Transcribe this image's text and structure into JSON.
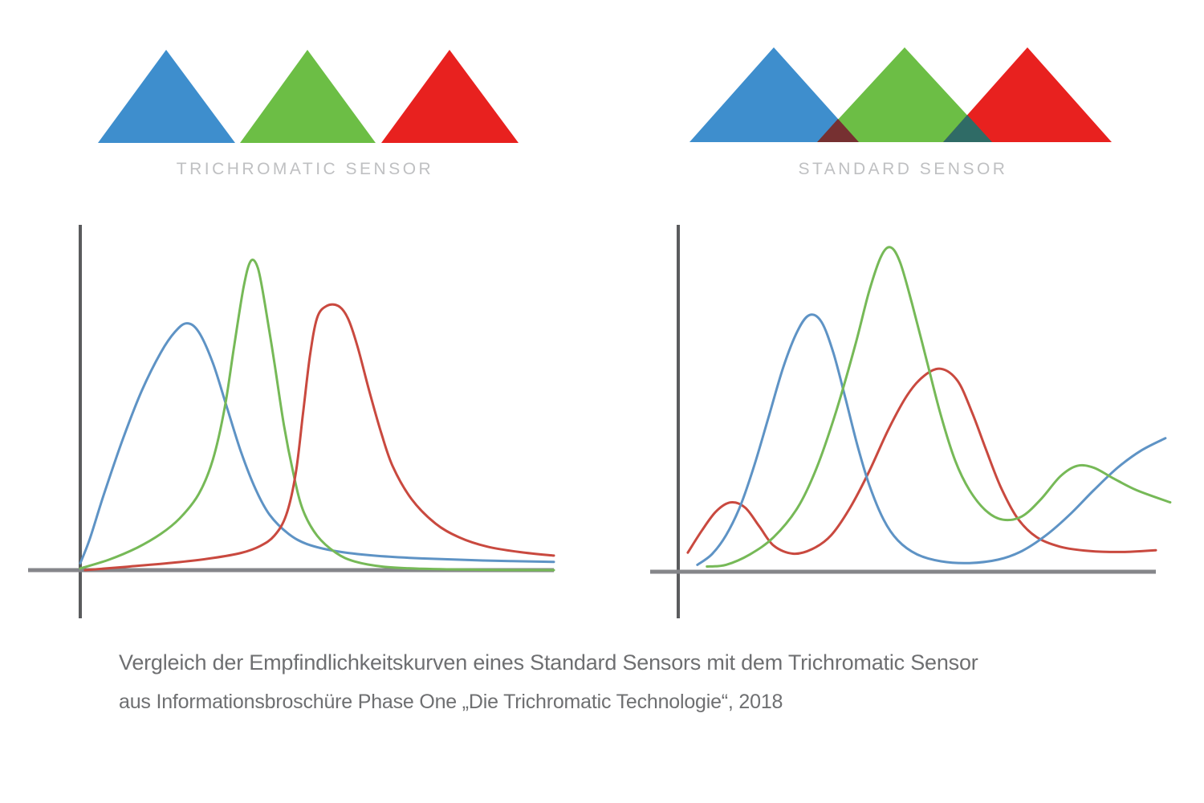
{
  "figure": {
    "background": "#ffffff"
  },
  "colors": {
    "triangle_blue": "#3e8ecd",
    "triangle_green": "#6cbe45",
    "triangle_red": "#e8211f",
    "overlap_blue_green": "#763031",
    "overlap_green_red": "#2f6b66",
    "curve_blue": "#5e93c5",
    "curve_green": "#76b957",
    "curve_red": "#c9493f",
    "axis_horizontal": "#85868a",
    "axis_vertical": "#5b5c5e",
    "sensor_label_gray": "#bfc0c2",
    "caption_gray": "#6e6f71"
  },
  "trichromatic": {
    "label": "TRICHROMATIC SENSOR"
  },
  "standard": {
    "label": "STANDARD SENSOR"
  },
  "caption": {
    "line1": "Vergleich der Empfindlichkeitskurven eines Standard Sensors mit dem Trichromatic Sensor",
    "line2": "aus Informationsbroschüre Phase One „Die Trichromatic Technologie“, 2018"
  },
  "chart_data": [
    {
      "type": "line",
      "title": "TRICHROMATIC SENSOR",
      "xlabel": "",
      "ylabel": "",
      "x_range": [
        0,
        1
      ],
      "y_range": [
        0,
        1
      ],
      "grid": false,
      "legend": null,
      "description": "Spectral sensitivity curves of the Trichromatic sensor: three well-separated narrow peaks (blue, green, red) with little overlap.",
      "series": [
        {
          "name": "blue",
          "color": "#5e93c5",
          "points": [
            [
              0,
              0.02
            ],
            [
              0.02,
              0.09
            ],
            [
              0.05,
              0.22
            ],
            [
              0.09,
              0.38
            ],
            [
              0.13,
              0.52
            ],
            [
              0.17,
              0.63
            ],
            [
              0.2,
              0.69
            ],
            [
              0.225,
              0.715
            ],
            [
              0.25,
              0.69
            ],
            [
              0.28,
              0.6
            ],
            [
              0.31,
              0.47
            ],
            [
              0.34,
              0.34
            ],
            [
              0.37,
              0.235
            ],
            [
              0.4,
              0.16
            ],
            [
              0.44,
              0.105
            ],
            [
              0.48,
              0.075
            ],
            [
              0.54,
              0.055
            ],
            [
              0.62,
              0.042
            ],
            [
              0.72,
              0.034
            ],
            [
              0.85,
              0.028
            ],
            [
              1.0,
              0.024
            ]
          ]
        },
        {
          "name": "green",
          "color": "#76b957",
          "points": [
            [
              0,
              0.005
            ],
            [
              0.06,
              0.03
            ],
            [
              0.12,
              0.065
            ],
            [
              0.17,
              0.105
            ],
            [
              0.21,
              0.15
            ],
            [
              0.25,
              0.22
            ],
            [
              0.28,
              0.32
            ],
            [
              0.305,
              0.47
            ],
            [
              0.325,
              0.65
            ],
            [
              0.345,
              0.82
            ],
            [
              0.36,
              0.895
            ],
            [
              0.375,
              0.875
            ],
            [
              0.39,
              0.77
            ],
            [
              0.41,
              0.6
            ],
            [
              0.43,
              0.42
            ],
            [
              0.45,
              0.28
            ],
            [
              0.47,
              0.175
            ],
            [
              0.5,
              0.1
            ],
            [
              0.54,
              0.05
            ],
            [
              0.58,
              0.025
            ],
            [
              0.64,
              0.01
            ],
            [
              0.72,
              0.004
            ],
            [
              0.85,
              0.001
            ],
            [
              1.0,
              0.0
            ]
          ]
        },
        {
          "name": "red",
          "color": "#c9493f",
          "points": [
            [
              0.01,
              0.0
            ],
            [
              0.1,
              0.01
            ],
            [
              0.2,
              0.022
            ],
            [
              0.28,
              0.035
            ],
            [
              0.34,
              0.05
            ],
            [
              0.38,
              0.07
            ],
            [
              0.41,
              0.1
            ],
            [
              0.435,
              0.16
            ],
            [
              0.455,
              0.28
            ],
            [
              0.47,
              0.45
            ],
            [
              0.485,
              0.62
            ],
            [
              0.5,
              0.73
            ],
            [
              0.52,
              0.765
            ],
            [
              0.545,
              0.765
            ],
            [
              0.565,
              0.73
            ],
            [
              0.585,
              0.65
            ],
            [
              0.61,
              0.52
            ],
            [
              0.635,
              0.4
            ],
            [
              0.66,
              0.3
            ],
            [
              0.7,
              0.205
            ],
            [
              0.75,
              0.135
            ],
            [
              0.8,
              0.095
            ],
            [
              0.86,
              0.068
            ],
            [
              0.93,
              0.052
            ],
            [
              1.0,
              0.042
            ]
          ]
        }
      ]
    },
    {
      "type": "line",
      "title": "STANDARD SENSOR",
      "xlabel": "",
      "ylabel": "",
      "x_range": [
        0,
        1
      ],
      "y_range": [
        0,
        1
      ],
      "grid": false,
      "legend": null,
      "description": "Spectral sensitivity curves of a standard sensor: broad overlapping peaks, a secondary red bump at short wavelengths, and rising blue/green response at the long-wavelength end.",
      "series": [
        {
          "name": "red",
          "color": "#c9493f",
          "points": [
            [
              0.02,
              0.055
            ],
            [
              0.05,
              0.12
            ],
            [
              0.08,
              0.175
            ],
            [
              0.11,
              0.2
            ],
            [
              0.14,
              0.185
            ],
            [
              0.17,
              0.13
            ],
            [
              0.2,
              0.075
            ],
            [
              0.24,
              0.052
            ],
            [
              0.28,
              0.065
            ],
            [
              0.32,
              0.105
            ],
            [
              0.36,
              0.185
            ],
            [
              0.4,
              0.29
            ],
            [
              0.44,
              0.41
            ],
            [
              0.48,
              0.51
            ],
            [
              0.515,
              0.565
            ],
            [
              0.55,
              0.585
            ],
            [
              0.585,
              0.55
            ],
            [
              0.615,
              0.46
            ],
            [
              0.645,
              0.35
            ],
            [
              0.675,
              0.245
            ],
            [
              0.71,
              0.155
            ],
            [
              0.75,
              0.1
            ],
            [
              0.8,
              0.072
            ],
            [
              0.86,
              0.06
            ],
            [
              0.93,
              0.057
            ],
            [
              1.0,
              0.062
            ]
          ]
        },
        {
          "name": "blue",
          "color": "#5e93c5",
          "points": [
            [
              0.04,
              0.02
            ],
            [
              0.07,
              0.05
            ],
            [
              0.1,
              0.105
            ],
            [
              0.13,
              0.19
            ],
            [
              0.16,
              0.31
            ],
            [
              0.19,
              0.45
            ],
            [
              0.22,
              0.59
            ],
            [
              0.25,
              0.695
            ],
            [
              0.275,
              0.74
            ],
            [
              0.3,
              0.72
            ],
            [
              0.325,
              0.63
            ],
            [
              0.35,
              0.5
            ],
            [
              0.375,
              0.365
            ],
            [
              0.4,
              0.25
            ],
            [
              0.43,
              0.15
            ],
            [
              0.46,
              0.09
            ],
            [
              0.5,
              0.05
            ],
            [
              0.55,
              0.03
            ],
            [
              0.61,
              0.025
            ],
            [
              0.67,
              0.035
            ],
            [
              0.72,
              0.06
            ],
            [
              0.77,
              0.105
            ],
            [
              0.82,
              0.165
            ],
            [
              0.87,
              0.235
            ],
            [
              0.92,
              0.3
            ],
            [
              0.97,
              0.35
            ],
            [
              1.02,
              0.385
            ]
          ]
        },
        {
          "name": "green",
          "color": "#76b957",
          "points": [
            [
              0.06,
              0.015
            ],
            [
              0.1,
              0.02
            ],
            [
              0.15,
              0.05
            ],
            [
              0.2,
              0.1
            ],
            [
              0.25,
              0.185
            ],
            [
              0.29,
              0.3
            ],
            [
              0.33,
              0.46
            ],
            [
              0.37,
              0.65
            ],
            [
              0.4,
              0.81
            ],
            [
              0.425,
              0.91
            ],
            [
              0.445,
              0.935
            ],
            [
              0.465,
              0.89
            ],
            [
              0.49,
              0.77
            ],
            [
              0.52,
              0.61
            ],
            [
              0.55,
              0.45
            ],
            [
              0.58,
              0.32
            ],
            [
              0.61,
              0.235
            ],
            [
              0.645,
              0.175
            ],
            [
              0.68,
              0.15
            ],
            [
              0.72,
              0.16
            ],
            [
              0.76,
              0.21
            ],
            [
              0.8,
              0.275
            ],
            [
              0.835,
              0.305
            ],
            [
              0.87,
              0.3
            ],
            [
              0.91,
              0.27
            ],
            [
              0.96,
              0.235
            ],
            [
              1.03,
              0.2
            ]
          ]
        }
      ]
    }
  ]
}
